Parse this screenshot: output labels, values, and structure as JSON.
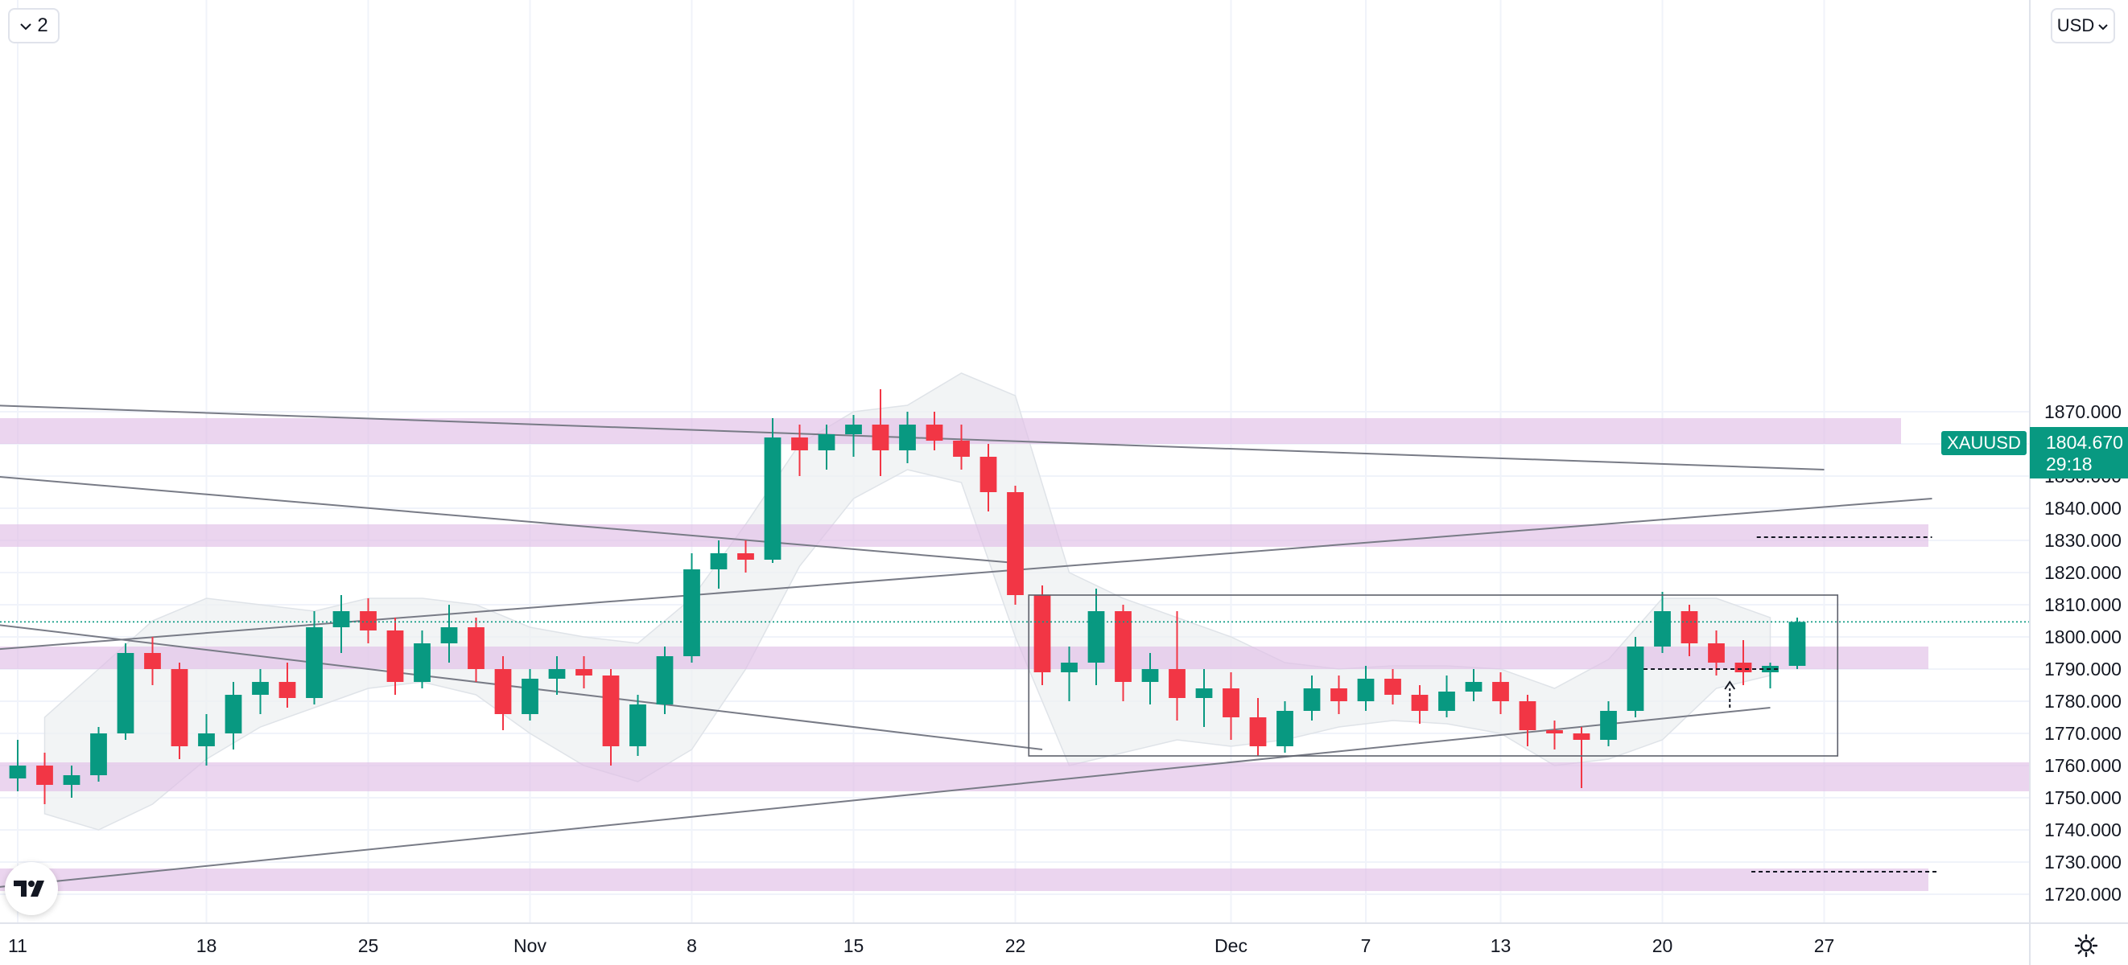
{
  "toolbar": {
    "interval_label": "2",
    "currency_label": "USD"
  },
  "symbol": "XAUUSD",
  "last_price": "1804.670",
  "countdown": "29:18",
  "colors": {
    "up": "#089981",
    "down": "#f23645",
    "zone": "#e1bee7",
    "band": "#eceff1",
    "line": "#787b86",
    "grid": "#f0f3fa",
    "axis_text": "#131722",
    "dotted": "#089981"
  },
  "icons": [
    "chevron-down-icon",
    "tradingview-logo-icon",
    "settings-icon"
  ],
  "chart_data": {
    "type": "candlestick",
    "title": "",
    "ylim": [
      1715,
      1880
    ],
    "xlim": [
      0,
      73
    ],
    "y_ticks": [
      "1720.000",
      "1730.000",
      "1740.000",
      "1750.000",
      "1760.000",
      "1770.000",
      "1780.000",
      "1790.000",
      "1800.000",
      "1810.000",
      "1820.000",
      "1830.000",
      "1840.000",
      "1850.000",
      "1860.000",
      "1870.000"
    ],
    "x_ticks": [
      {
        "label": "11",
        "x": 0
      },
      {
        "label": "18",
        "x": 7
      },
      {
        "label": "25",
        "x": 13
      },
      {
        "label": "Nov",
        "x": 19
      },
      {
        "label": "8",
        "x": 25
      },
      {
        "label": "15",
        "x": 31
      },
      {
        "label": "22",
        "x": 37
      },
      {
        "label": "Dec",
        "x": 45
      },
      {
        "label": "7",
        "x": 50
      },
      {
        "label": "13",
        "x": 55
      },
      {
        "label": "20",
        "x": 61
      },
      {
        "label": "27",
        "x": 67
      }
    ],
    "ohlc": [
      [
        0,
        1756,
        1768,
        1752,
        1760
      ],
      [
        1,
        1760,
        1764,
        1748,
        1754
      ],
      [
        2,
        1754,
        1760,
        1750,
        1757
      ],
      [
        3,
        1757,
        1772,
        1755,
        1770
      ],
      [
        4,
        1770,
        1798,
        1768,
        1795
      ],
      [
        5,
        1795,
        1800,
        1785,
        1790
      ],
      [
        6,
        1790,
        1792,
        1762,
        1766
      ],
      [
        7,
        1766,
        1776,
        1760,
        1770
      ],
      [
        8,
        1770,
        1786,
        1765,
        1782
      ],
      [
        9,
        1782,
        1790,
        1776,
        1786
      ],
      [
        10,
        1786,
        1792,
        1778,
        1781
      ],
      [
        11,
        1781,
        1808,
        1779,
        1803
      ],
      [
        12,
        1803,
        1813,
        1795,
        1808
      ],
      [
        13,
        1808,
        1812,
        1798,
        1802
      ],
      [
        14,
        1802,
        1806,
        1782,
        1786
      ],
      [
        15,
        1786,
        1802,
        1784,
        1798
      ],
      [
        16,
        1798,
        1810,
        1792,
        1803
      ],
      [
        17,
        1803,
        1806,
        1786,
        1790
      ],
      [
        18,
        1790,
        1794,
        1771,
        1776
      ],
      [
        19,
        1776,
        1790,
        1774,
        1787
      ],
      [
        20,
        1787,
        1794,
        1782,
        1790
      ],
      [
        21,
        1790,
        1794,
        1784,
        1788
      ],
      [
        22,
        1788,
        1790,
        1760,
        1766
      ],
      [
        23,
        1766,
        1782,
        1763,
        1779
      ],
      [
        24,
        1779,
        1797,
        1776,
        1794
      ],
      [
        25,
        1794,
        1826,
        1792,
        1821
      ],
      [
        26,
        1821,
        1830,
        1815,
        1826
      ],
      [
        27,
        1826,
        1830,
        1820,
        1824
      ],
      [
        28,
        1824,
        1868,
        1823,
        1862
      ],
      [
        29,
        1862,
        1866,
        1850,
        1858
      ],
      [
        30,
        1858,
        1866,
        1852,
        1863
      ],
      [
        31,
        1863,
        1869,
        1856,
        1866
      ],
      [
        32,
        1866,
        1877,
        1850,
        1858
      ],
      [
        33,
        1858,
        1870,
        1854,
        1866
      ],
      [
        34,
        1866,
        1870,
        1858,
        1861
      ],
      [
        35,
        1861,
        1866,
        1852,
        1856
      ],
      [
        36,
        1856,
        1860,
        1839,
        1845
      ],
      [
        37,
        1845,
        1847,
        1810,
        1813
      ],
      [
        38,
        1813,
        1816,
        1785,
        1789
      ],
      [
        39,
        1789,
        1797,
        1780,
        1792
      ],
      [
        40,
        1792,
        1815,
        1785,
        1808
      ],
      [
        41,
        1808,
        1810,
        1780,
        1786
      ],
      [
        42,
        1786,
        1795,
        1779,
        1790
      ],
      [
        43,
        1790,
        1808,
        1774,
        1781
      ],
      [
        44,
        1781,
        1790,
        1772,
        1784
      ],
      [
        45,
        1784,
        1789,
        1768,
        1775
      ],
      [
        46,
        1775,
        1781,
        1763,
        1766
      ],
      [
        47,
        1766,
        1780,
        1764,
        1777
      ],
      [
        48,
        1777,
        1788,
        1774,
        1784
      ],
      [
        49,
        1784,
        1788,
        1776,
        1780
      ],
      [
        50,
        1780,
        1791,
        1777,
        1787
      ],
      [
        51,
        1787,
        1790,
        1779,
        1782
      ],
      [
        52,
        1782,
        1785,
        1773,
        1777
      ],
      [
        53,
        1777,
        1788,
        1775,
        1783
      ],
      [
        54,
        1783,
        1790,
        1780,
        1786
      ],
      [
        55,
        1786,
        1789,
        1776,
        1780
      ],
      [
        56,
        1780,
        1782,
        1766,
        1771
      ],
      [
        57,
        1771,
        1774,
        1765,
        1770
      ],
      [
        58,
        1770,
        1772,
        1753,
        1768
      ],
      [
        59,
        1768,
        1780,
        1766,
        1777
      ],
      [
        60,
        1777,
        1800,
        1775,
        1797
      ],
      [
        61,
        1797,
        1814,
        1795,
        1808
      ],
      [
        62,
        1808,
        1810,
        1794,
        1798
      ],
      [
        63,
        1798,
        1802,
        1788,
        1792
      ],
      [
        64,
        1792,
        1799,
        1785,
        1789
      ],
      [
        65,
        1789,
        1792,
        1784,
        1791
      ],
      [
        66,
        1791,
        1806,
        1790,
        1804.67
      ]
    ],
    "zones": [
      [
        1860,
        1868
      ],
      [
        1828,
        1835
      ],
      [
        1790,
        1797
      ],
      [
        1752,
        1761
      ],
      [
        1721,
        1728
      ]
    ],
    "trendlines": [
      [
        [
          -1,
          1872
        ],
        [
          67,
          1852
        ]
      ],
      [
        [
          -1,
          1850
        ],
        [
          37,
          1823
        ]
      ],
      [
        [
          -1,
          1804
        ],
        [
          38,
          1765
        ]
      ],
      [
        [
          -1,
          1796
        ],
        [
          71,
          1843
        ]
      ],
      [
        [
          -1,
          1722
        ],
        [
          65,
          1778
        ]
      ]
    ],
    "range_box": [
      [
        37.5,
        1763
      ],
      [
        67.5,
        1813
      ]
    ],
    "reference_lines": [
      [
        [
          64.5,
          1831
        ],
        [
          71,
          1831
        ]
      ],
      [
        [
          60.3,
          1790
        ],
        [
          65.4,
          1790
        ]
      ],
      [
        [
          64.3,
          1727
        ],
        [
          71.2,
          1727
        ]
      ]
    ],
    "arrow": [
      [
        63.5,
        1778
      ],
      [
        63.5,
        1786
      ]
    ],
    "band": {
      "x": [
        1,
        3,
        5,
        7,
        9,
        11,
        13,
        15,
        17,
        19,
        21,
        23,
        25,
        27,
        29,
        31,
        33,
        35,
        37,
        39,
        41,
        43,
        45,
        47,
        49,
        51,
        53,
        55,
        57,
        59,
        61,
        63,
        65
      ],
      "upper": [
        1775,
        1790,
        1805,
        1812,
        1810,
        1808,
        1812,
        1812,
        1810,
        1803,
        1800,
        1798,
        1812,
        1835,
        1860,
        1870,
        1872,
        1882,
        1875,
        1820,
        1812,
        1806,
        1800,
        1792,
        1790,
        1791,
        1791,
        1790,
        1784,
        1793,
        1812,
        1812,
        1806
      ],
      "lower": [
        1745,
        1740,
        1748,
        1762,
        1772,
        1778,
        1784,
        1786,
        1782,
        1770,
        1760,
        1755,
        1765,
        1790,
        1822,
        1843,
        1852,
        1848,
        1800,
        1760,
        1764,
        1768,
        1766,
        1768,
        1772,
        1774,
        1773,
        1770,
        1760,
        1762,
        1768,
        1784,
        1788
      ]
    },
    "grid": true,
    "price_line": 1804.67
  }
}
